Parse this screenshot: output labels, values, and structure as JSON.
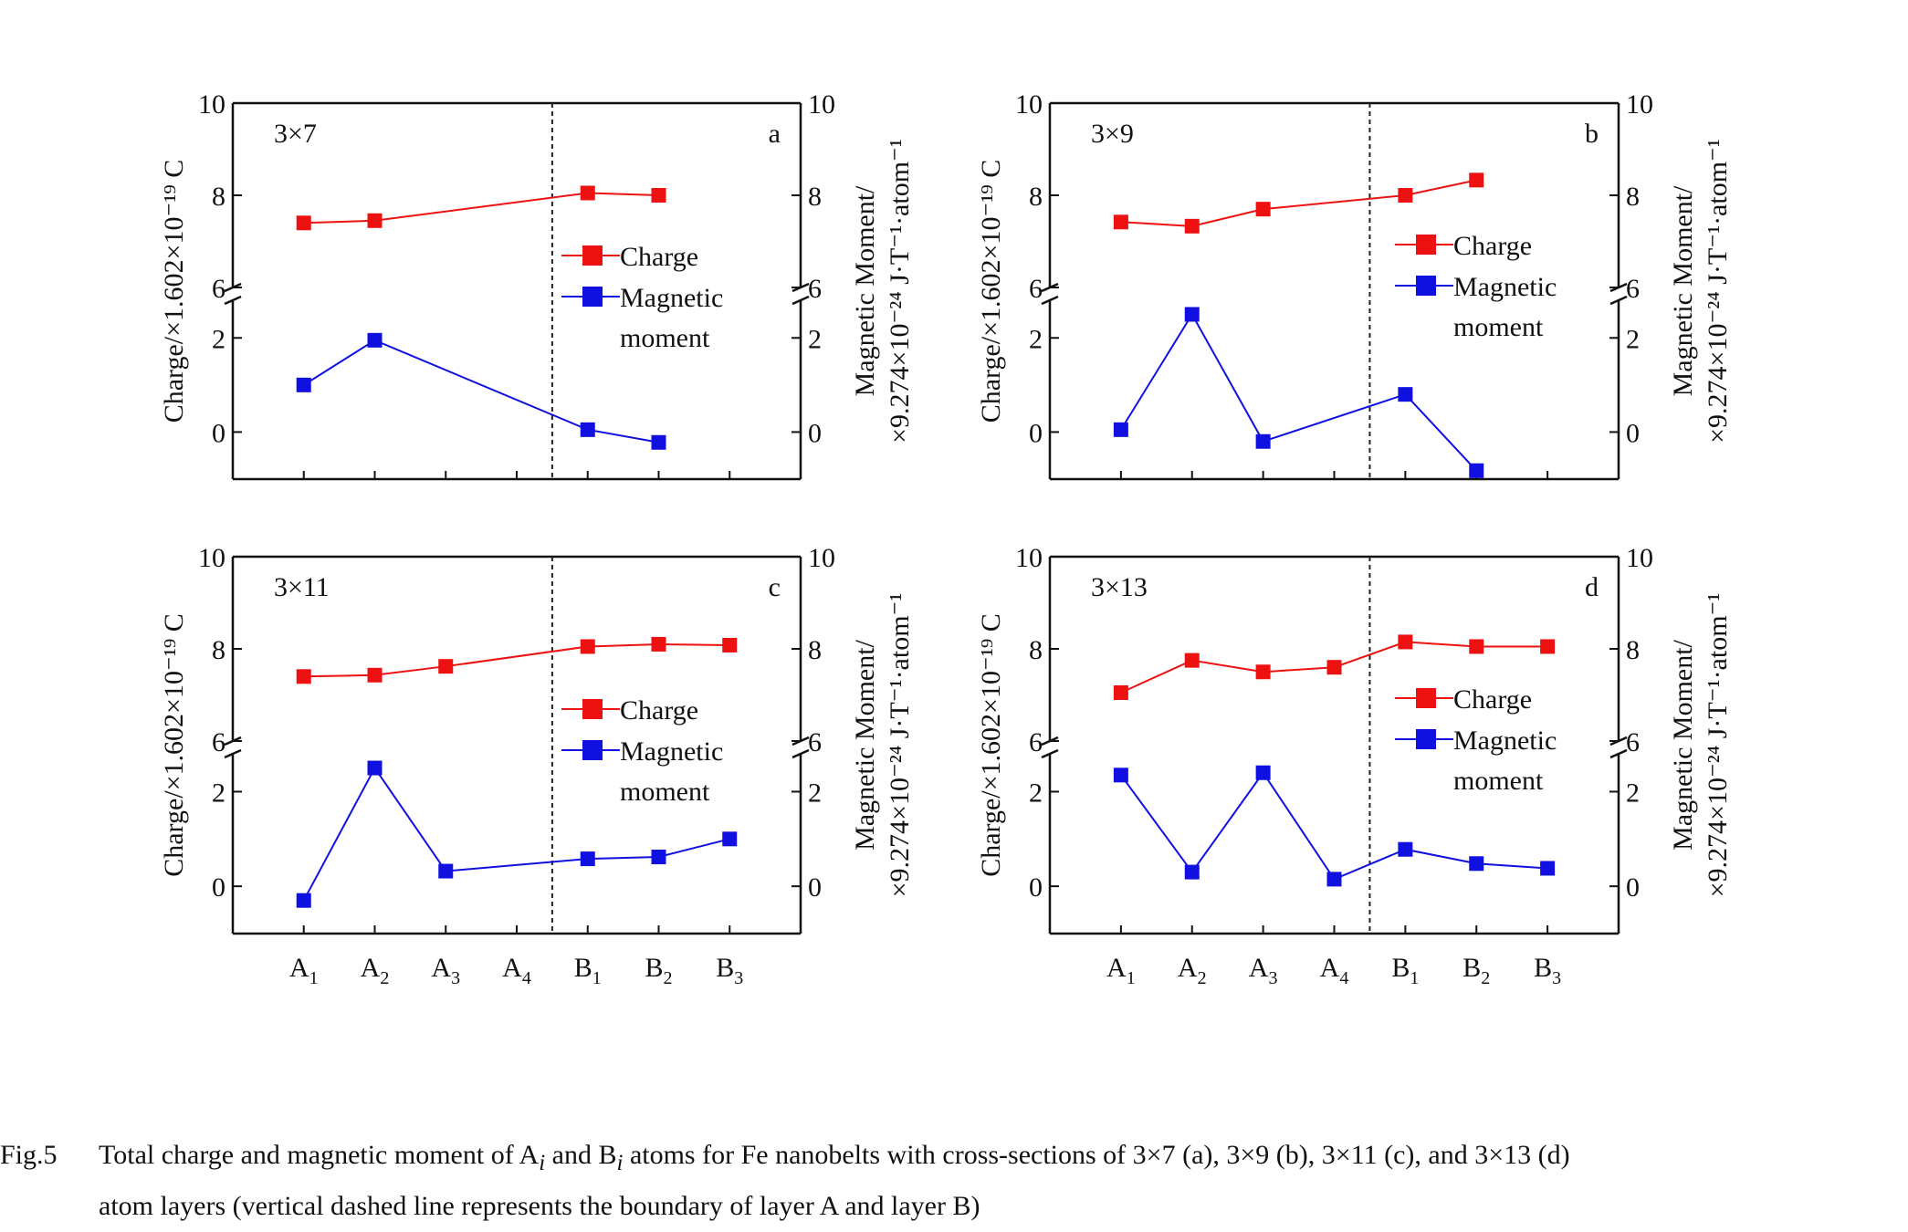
{
  "layers": [
    "A1",
    "A2",
    "A3",
    "A4",
    "B1",
    "B2",
    "B3"
  ],
  "legend": {
    "charge": "Charge",
    "magnetic_line1": "Magnetic",
    "magnetic_line2": "moment"
  },
  "y_axis_left": "Charge/×1.602×10⁻¹⁹ C",
  "y_axis_right_line1": "Magnetic Moment/",
  "y_axis_right_line2": "×9.274×10⁻²⁴ J·T⁻¹·atom⁻¹",
  "colors": {
    "charge": "#ee1111",
    "magnetic": "#1010e0"
  },
  "caption": {
    "label": "Fig.5",
    "line1_a": "Total charge and magnetic moment of A",
    "line1_i1": "i",
    "line1_b": " and B",
    "line1_i2": "i",
    "line1_c": " atoms for Fe nanobelts with cross-sections of 3×7 (a), 3×9 (b), 3×11 (c), and 3×13 (d)",
    "line2": "atom layers (vertical dashed line represents the boundary of layer A and layer B)"
  },
  "chart_data": [
    {
      "type": "line",
      "panel": "a",
      "label": "3×7",
      "categories": [
        "A1",
        "A2",
        "A3",
        "A4",
        "B1",
        "B2",
        "B3"
      ],
      "boundary_between": [
        "A4",
        "B1"
      ],
      "ylim_top": [
        6,
        10
      ],
      "ylim_bottom": [
        -1,
        2.8
      ],
      "yticks_top": [
        6,
        8,
        10
      ],
      "yticks_bottom": [
        0,
        2
      ],
      "series": [
        {
          "name": "Charge",
          "x": [
            "A1",
            "A2",
            "B1",
            "B2"
          ],
          "values": [
            7.4,
            7.45,
            8.05,
            8.0
          ]
        },
        {
          "name": "Magnetic moment",
          "x": [
            "A1",
            "A2",
            "B1",
            "B2"
          ],
          "values": [
            1.0,
            1.95,
            0.05,
            -0.22
          ]
        }
      ]
    },
    {
      "type": "line",
      "panel": "b",
      "label": "3×9",
      "categories": [
        "A1",
        "A2",
        "A3",
        "A4",
        "B1",
        "B2",
        "B3"
      ],
      "boundary_between": [
        "A4",
        "B1"
      ],
      "ylim_top": [
        6,
        10
      ],
      "ylim_bottom": [
        -1,
        2.8
      ],
      "yticks_top": [
        6,
        8,
        10
      ],
      "yticks_bottom": [
        0,
        2
      ],
      "series": [
        {
          "name": "Charge",
          "x": [
            "A1",
            "A2",
            "A3",
            "B1",
            "B2"
          ],
          "values": [
            7.42,
            7.33,
            7.7,
            8.0,
            8.33
          ]
        },
        {
          "name": "Magnetic moment",
          "x": [
            "A1",
            "A2",
            "A3",
            "B1",
            "B2"
          ],
          "values": [
            0.05,
            2.5,
            -0.2,
            0.8,
            -0.82
          ]
        }
      ]
    },
    {
      "type": "line",
      "panel": "c",
      "label": "3×11",
      "categories": [
        "A1",
        "A2",
        "A3",
        "A4",
        "B1",
        "B2",
        "B3"
      ],
      "boundary_between": [
        "A4",
        "B1"
      ],
      "ylim_top": [
        6,
        10
      ],
      "ylim_bottom": [
        -1,
        2.8
      ],
      "yticks_top": [
        6,
        8,
        10
      ],
      "yticks_bottom": [
        0,
        2
      ],
      "series": [
        {
          "name": "Charge",
          "x": [
            "A1",
            "A2",
            "A3",
            "B1",
            "B2",
            "B3"
          ],
          "values": [
            7.4,
            7.43,
            7.62,
            8.05,
            8.1,
            8.08
          ]
        },
        {
          "name": "Magnetic moment",
          "x": [
            "A1",
            "A2",
            "A3",
            "B1",
            "B2",
            "B3"
          ],
          "values": [
            -0.3,
            2.5,
            0.32,
            0.58,
            0.62,
            1.0
          ]
        }
      ]
    },
    {
      "type": "line",
      "panel": "d",
      "label": "3×13",
      "categories": [
        "A1",
        "A2",
        "A3",
        "A4",
        "B1",
        "B2",
        "B3"
      ],
      "boundary_between": [
        "A4",
        "B1"
      ],
      "ylim_top": [
        6,
        10
      ],
      "ylim_bottom": [
        -1,
        2.8
      ],
      "yticks_top": [
        6,
        8,
        10
      ],
      "yticks_bottom": [
        0,
        2
      ],
      "series": [
        {
          "name": "Charge",
          "x": [
            "A1",
            "A2",
            "A3",
            "A4",
            "B1",
            "B2",
            "B3"
          ],
          "values": [
            7.05,
            7.75,
            7.5,
            7.6,
            8.15,
            8.05,
            8.05
          ]
        },
        {
          "name": "Magnetic moment",
          "x": [
            "A1",
            "A2",
            "A3",
            "A4",
            "B1",
            "B2",
            "B3"
          ],
          "values": [
            2.35,
            0.3,
            2.4,
            0.15,
            0.78,
            0.48,
            0.38
          ]
        }
      ]
    }
  ]
}
